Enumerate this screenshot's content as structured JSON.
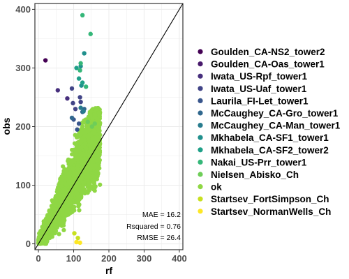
{
  "chart_data": {
    "type": "scatter",
    "xlabel": "rf",
    "ylabel": "obs",
    "xlim": [
      -10,
      410
    ],
    "ylim": [
      -10,
      410
    ],
    "x_ticks": [
      0,
      100,
      200,
      300,
      400
    ],
    "y_ticks": [
      0,
      100,
      200,
      300,
      400
    ],
    "grid": true,
    "legend_position": "right",
    "reference_line": "1:1 identity line (y = x)",
    "annotations": [
      "MAE = 16.2",
      "Rsquared = 0.76",
      "RMSE = 26.4"
    ],
    "series": [
      {
        "name": "Goulden_CA-NS2_tower2",
        "color": "#440154",
        "points": [
          [
            20,
            313
          ]
        ]
      },
      {
        "name": "Goulden_CA-Oas_tower1",
        "color": "#481a6c",
        "points": []
      },
      {
        "name": "Iwata_US-Rpf_tower1",
        "color": "#472f7d",
        "points": [
          [
            55,
            262
          ],
          [
            82,
            248
          ]
        ]
      },
      {
        "name": "Iwata_US-Uaf_tower1",
        "color": "#414487",
        "points": [
          [
            95,
            265
          ],
          [
            98,
            240
          ],
          [
            118,
            250
          ],
          [
            105,
            230
          ],
          [
            120,
            242
          ]
        ]
      },
      {
        "name": "Laurila_FI-Let_tower1",
        "color": "#39568c",
        "points": [
          [
            100,
            212
          ],
          [
            115,
            205
          ],
          [
            110,
            195
          ]
        ]
      },
      {
        "name": "McCaughey_CA-Gro_tower1",
        "color": "#31688e",
        "points": [
          [
            95,
            215
          ],
          [
            130,
            230
          ],
          [
            125,
            225
          ]
        ]
      },
      {
        "name": "McCaughey_CA-Man_tower1",
        "color": "#287c8e",
        "points": [
          [
            120,
            232
          ],
          [
            128,
            226
          ]
        ]
      },
      {
        "name": "Mkhabela_CA-SF1_tower1",
        "color": "#21908d",
        "points": [
          [
            130,
            325
          ],
          [
            120,
            303
          ],
          [
            122,
            270
          ]
        ]
      },
      {
        "name": "Mkhabela_CA-SF2_tower2",
        "color": "#1fa088",
        "points": [
          [
            115,
            282
          ],
          [
            125,
            275
          ],
          [
            108,
            300
          ]
        ]
      },
      {
        "name": "Nakai_US-Prr_tower1",
        "color": "#35b779",
        "points": [
          [
            125,
            390
          ],
          [
            148,
            358
          ],
          [
            118,
            296
          ],
          [
            120,
            308
          ],
          [
            135,
            268
          ]
        ]
      },
      {
        "name": "Nielsen_Abisko_Ch",
        "color": "#6ece58",
        "points": [
          [
            140,
            208
          ],
          [
            152,
            200
          ],
          [
            160,
            205
          ]
        ]
      },
      {
        "name": "ok",
        "color": "#8fd744",
        "points": []
      },
      {
        "name": "Startsev_FortSimpson_Ch",
        "color": "#c8e020",
        "points": [
          [
            102,
            18
          ],
          [
            112,
            10
          ]
        ]
      },
      {
        "name": "Startsev_NormanWells_Ch",
        "color": "#fde725",
        "points": [
          [
            108,
            3
          ],
          [
            118,
            2
          ]
        ]
      }
    ],
    "ok_cloud_description": "dense band of several thousand points roughly along y = 1.1x, x from 0 to ~180, y from 0 to ~210"
  }
}
